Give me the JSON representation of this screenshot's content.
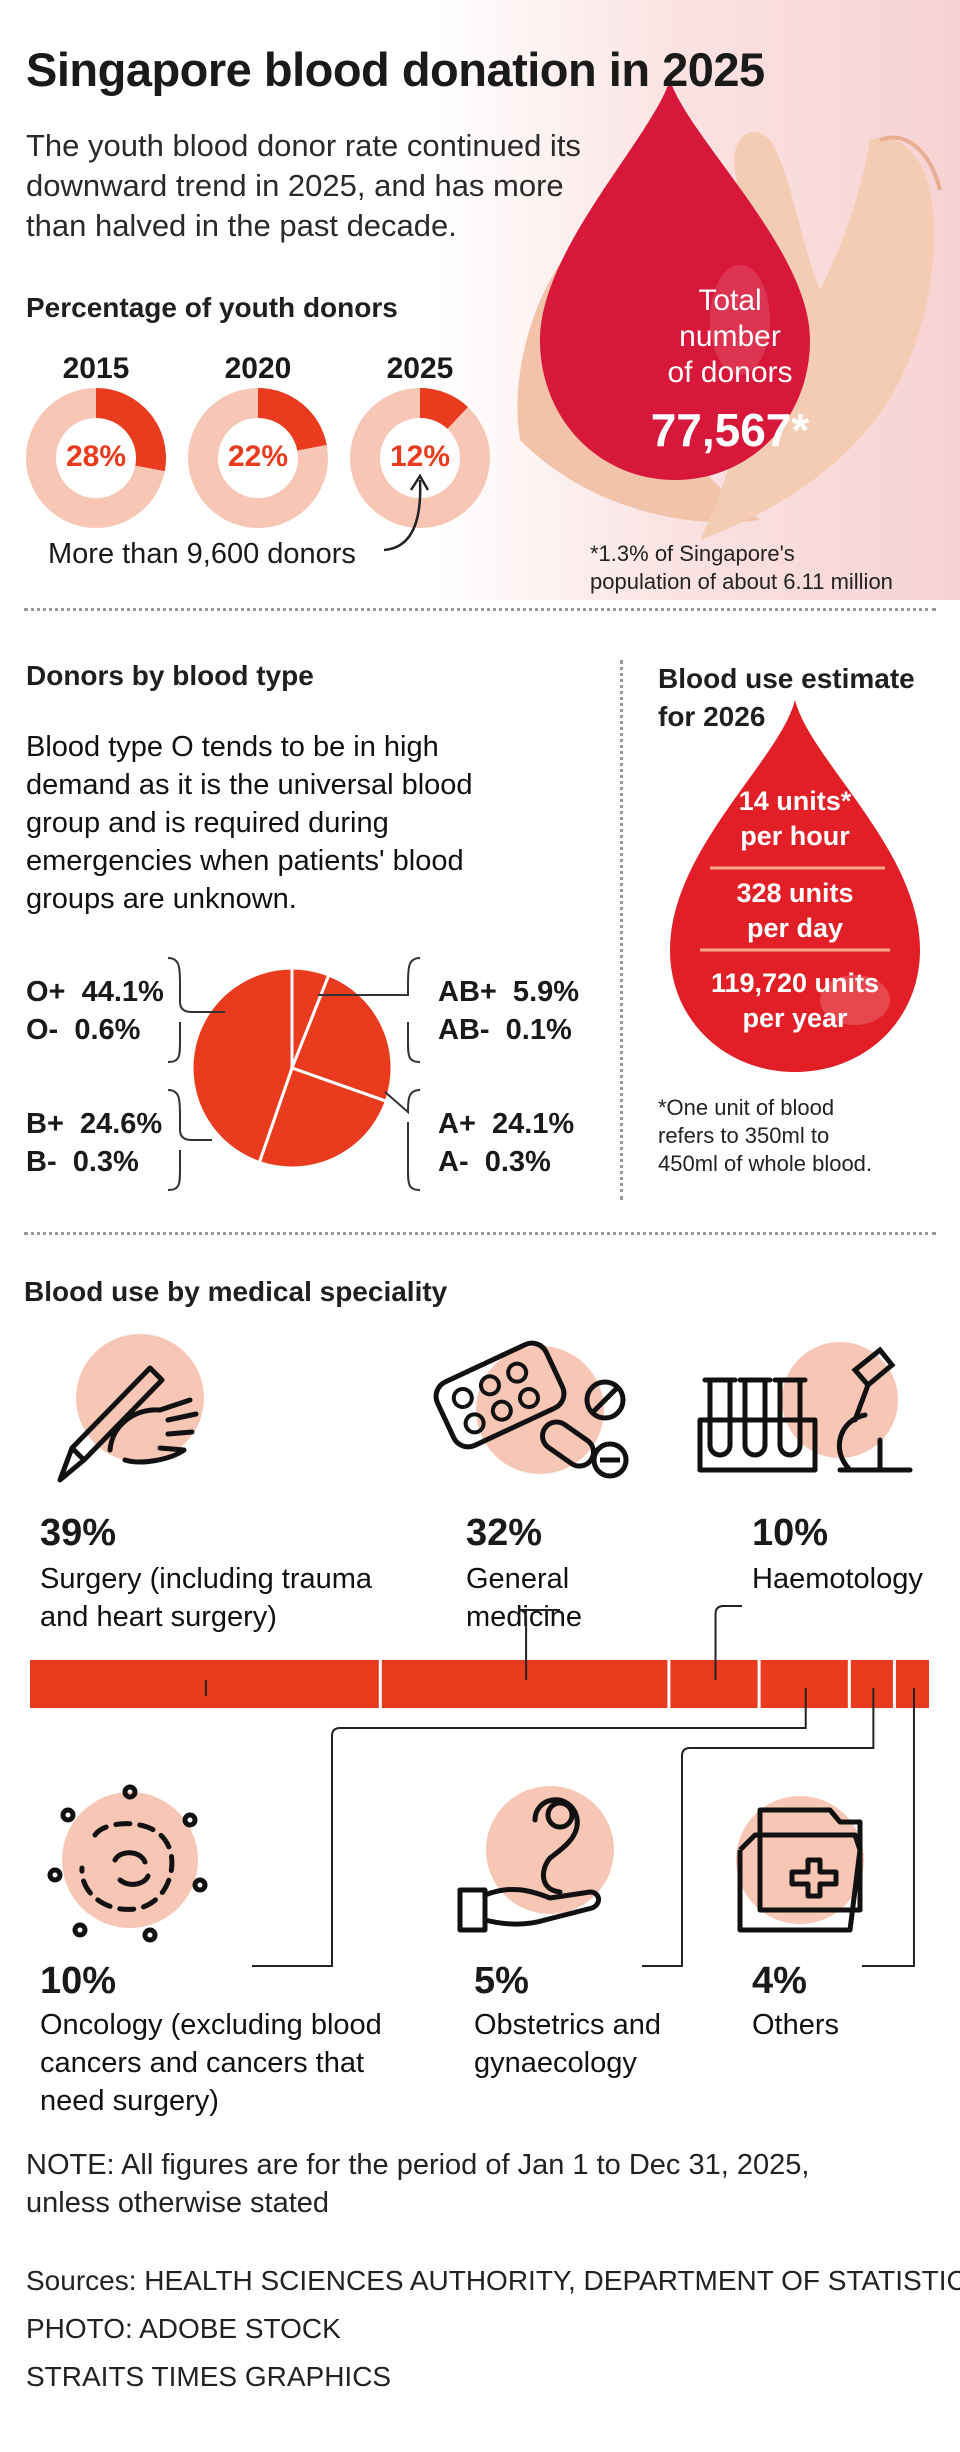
{
  "header": {
    "title": "Singapore blood donation in 2025",
    "intro": "The youth blood donor rate continued its downward trend in 2025, and has more than halved in the past decade."
  },
  "youth": {
    "heading": "Percentage of youth donors",
    "donors_note": "More than 9,600 donors"
  },
  "total": {
    "label_1": "Total",
    "label_2": "number",
    "label_3": "of donors",
    "value": "77,567*",
    "footnote_1": "*1.3% of Singapore's",
    "footnote_2": "population of about 6.11 million"
  },
  "blood_type": {
    "heading": "Donors by blood type",
    "description": "Blood type O tends to be in high demand as it is the universal blood group and is required during emergencies when patients' blood groups are unknown."
  },
  "estimate": {
    "heading_1": "Blood use estimate",
    "heading_2": "for 2026",
    "hour_1": "14 units*",
    "hour_2": "per hour",
    "day_1": "328 units",
    "day_2": "per day",
    "year_1": "119,720 units",
    "year_2": "per year",
    "note_1": "*One unit of blood",
    "note_2": "refers to 350ml to",
    "note_3": "450ml of whole blood."
  },
  "speciality": {
    "heading": "Blood use by medical speciality"
  },
  "footer": {
    "note_1": "NOTE: All figures are for the period of Jan 1 to Dec 31, 2025,",
    "note_2": "unless otherwise stated",
    "sources": "Sources: HEALTH SCIENCES AUTHORITY, DEPARTMENT OF STATISTICS",
    "photo": "PHOTO: ADOBE STOCK",
    "credit": "STRAITS TIMES GRAPHICS"
  },
  "colors": {
    "accent": "#ea3b1f",
    "light": "#f8c6b5",
    "drop": "#d8183a",
    "ink": "#1a1a1a"
  },
  "chart_data": [
    {
      "type": "pie",
      "title": "Percentage of youth donors",
      "categories": [
        "2015",
        "2020",
        "2025"
      ],
      "values": [
        28,
        22,
        12
      ],
      "labels": [
        "28%",
        "22%",
        "12%"
      ]
    },
    {
      "type": "pie",
      "title": "Donors by blood type",
      "categories": [
        "O+",
        "O-",
        "AB+",
        "AB-",
        "A+",
        "A-",
        "B+",
        "B-"
      ],
      "values": [
        44.1,
        0.6,
        5.9,
        0.1,
        24.1,
        0.3,
        24.6,
        0.3
      ],
      "labels": [
        "44.1%",
        "0.6%",
        "5.9%",
        "0.1%",
        "24.1%",
        "0.3%",
        "24.6%",
        "0.3%"
      ]
    },
    {
      "type": "bar",
      "title": "Blood use by medical speciality",
      "categories": [
        "Surgery (including trauma and heart surgery)",
        "General medicine",
        "Haemotology",
        "Oncology (excluding blood cancers and cancers that need surgery)",
        "Obstetrics and gynaecology",
        "Others"
      ],
      "values": [
        39,
        32,
        10,
        10,
        5,
        4
      ],
      "labels": [
        "39%",
        "32%",
        "10%",
        "10%",
        "5%",
        "4%"
      ]
    }
  ]
}
